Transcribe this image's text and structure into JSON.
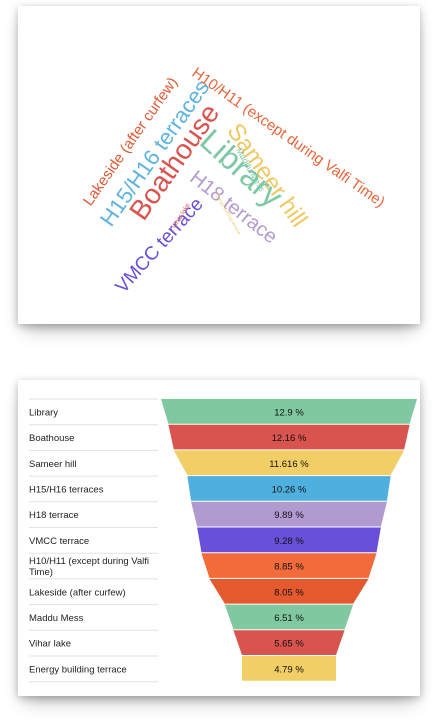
{
  "chart_data": [
    {
      "type": "wordcloud",
      "words": [
        {
          "text": "H10/H11 (except during Valfi Time)",
          "weight": 8.85,
          "color": "#e8643a"
        },
        {
          "text": "Sameer hill",
          "weight": 11.616,
          "color": "#f0c862"
        },
        {
          "text": "Boathouse",
          "weight": 12.16,
          "color": "#d9534f"
        },
        {
          "text": "Library",
          "weight": 12.9,
          "color": "#7ec9a5"
        },
        {
          "text": "H15/H16 terraces",
          "weight": 10.26,
          "color": "#5fb3e0"
        },
        {
          "text": "Lakeside (after curfew)",
          "weight": 8.05,
          "color": "#e05a36"
        },
        {
          "text": "H18 terrace",
          "weight": 9.89,
          "color": "#b39bd0"
        },
        {
          "text": "VMCC terrace",
          "weight": 9.28,
          "color": "#6a4fd8"
        },
        {
          "text": "Maddu Mess",
          "weight": 6.51,
          "color": "#80c8a5"
        },
        {
          "text": "Vihar lake",
          "weight": 5.65,
          "color": "#e06060"
        },
        {
          "text": "Energy building terrace",
          "weight": 4.79,
          "color": "#f0cc70"
        }
      ]
    },
    {
      "type": "funnel",
      "categories": [
        "Library",
        "Boathouse",
        "Sameer hill",
        "H15/H16 terraces",
        "H18 terrace",
        "VMCC terrace",
        "H10/H11 (except during Valfi Time)",
        "Lakeside (after curfew)",
        "Maddu Mess",
        "Vihar lake",
        "Energy building terrace"
      ],
      "values": [
        12.9,
        12.16,
        11.616,
        10.26,
        9.89,
        9.28,
        8.85,
        8.05,
        6.51,
        5.65,
        4.79
      ],
      "value_labels": [
        "12.9 %",
        "12.16 %",
        "11.616 %",
        "10.26 %",
        "9.89 %",
        "9.28 %",
        "8.85 %",
        "8.05 %",
        "6.51 %",
        "5.65 %",
        "4.79 %"
      ],
      "colors": [
        "#80c8a0",
        "#d9534f",
        "#f2cf66",
        "#4fb0e0",
        "#b19ad0",
        "#6a4fd8",
        "#f26b3a",
        "#e45a2e",
        "#80c8a0",
        "#d9534f",
        "#f2cf66"
      ]
    }
  ]
}
